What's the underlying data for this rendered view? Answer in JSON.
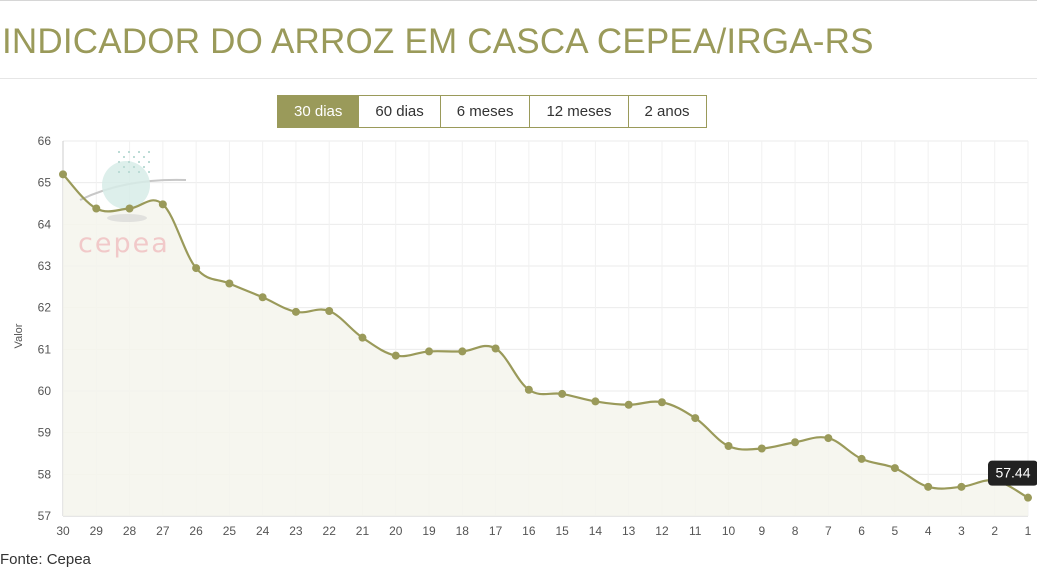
{
  "page": {
    "title": "INDICADOR DO ARROZ EM CASCA CEPEA/IRGA-RS",
    "source": "Fonte: Cepea"
  },
  "range_selector": {
    "buttons": [
      "30 dias",
      "60 dias",
      "6 meses",
      "12 meses",
      "2 anos"
    ],
    "active": "30 dias"
  },
  "watermark": {
    "text": "cepea"
  },
  "colors": {
    "accent": "#9a9a5a",
    "line": "#9a9a5a",
    "area_fill": "#f4f4ec",
    "tooltip_bg": "#222222"
  },
  "tooltip": {
    "value": "57.44"
  },
  "chart_data": {
    "type": "area",
    "ylabel": "Valor",
    "xlabel": "",
    "ylim": [
      57,
      66
    ],
    "yticks": [
      57,
      58,
      59,
      60,
      61,
      62,
      63,
      64,
      65,
      66
    ],
    "grid": true,
    "x": [
      "30",
      "29",
      "28",
      "27",
      "26",
      "25",
      "24",
      "23",
      "22",
      "21",
      "20",
      "19",
      "18",
      "17",
      "16",
      "15",
      "14",
      "13",
      "12",
      "11",
      "10",
      "9",
      "8",
      "7",
      "6",
      "5",
      "4",
      "3",
      "2",
      "1"
    ],
    "series": [
      {
        "values": [
          65.2,
          64.38,
          64.38,
          64.48,
          62.95,
          62.58,
          62.25,
          61.9,
          61.92,
          61.28,
          60.85,
          60.95,
          60.95,
          61.02,
          60.03,
          59.93,
          59.75,
          59.67,
          59.73,
          59.35,
          58.68,
          58.62,
          58.77,
          58.87,
          58.37,
          58.15,
          57.7,
          57.7,
          57.85,
          57.44
        ]
      }
    ]
  }
}
